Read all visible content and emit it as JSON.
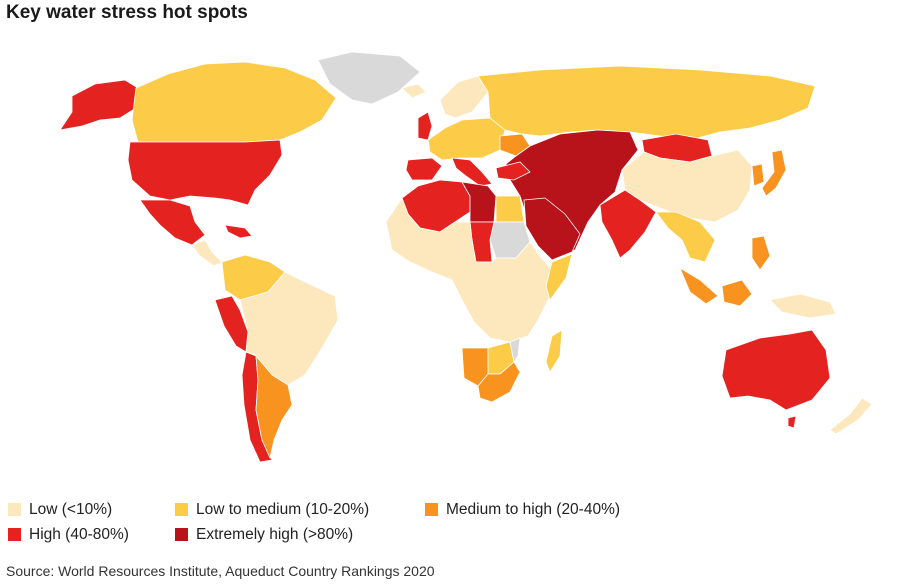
{
  "title": "Key water stress hot spots",
  "legend": [
    {
      "label": "Low (<10%)",
      "color": "#fde8bd"
    },
    {
      "label": "Low to medium (10-20%)",
      "color": "#fccc48"
    },
    {
      "label": "Medium to high (20-40%)",
      "color": "#f7931e"
    },
    {
      "label": "High (40-80%)",
      "color": "#e42220"
    },
    {
      "label": "Extremely high (>80%)",
      "color": "#b8121a"
    }
  ],
  "no_data_color": "#d9d9d9",
  "source": "Source: World Resources Institute, Aqueduct Country Rankings 2020"
}
